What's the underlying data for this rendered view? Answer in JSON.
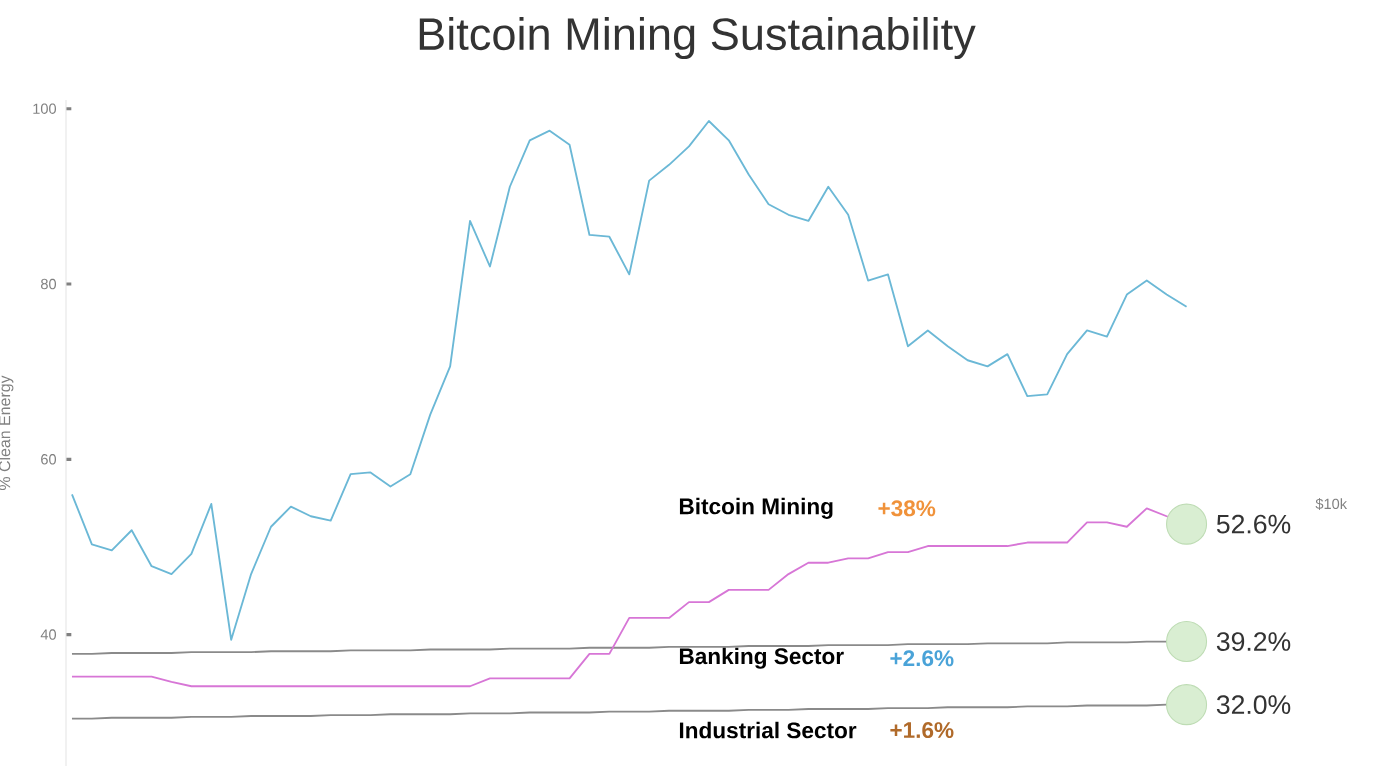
{
  "chart_data": {
    "type": "line",
    "title": "Bitcoin Mining Sustainability",
    "ylabel": "% Clean Energy",
    "categories": [
      null,
      null,
      null,
      null,
      null,
      null,
      null,
      null,
      null,
      null,
      null,
      null,
      null,
      null,
      null,
      null,
      null,
      null,
      null,
      null,
      null,
      null,
      null,
      null,
      null,
      null,
      null,
      null,
      null,
      null,
      null,
      null,
      null,
      null,
      null,
      null,
      null,
      null,
      null,
      null,
      null,
      null,
      null,
      null,
      null,
      null,
      null,
      null,
      null,
      null,
      null,
      null,
      null,
      null,
      null,
      null,
      null
    ],
    "ylim": [
      25,
      101
    ],
    "yticks": [
      40,
      60,
      80,
      100
    ],
    "annotations": [
      "+38%",
      "+2.6%",
      "+1.6%",
      "$10k"
    ],
    "series": [
      {
        "color": "#6bb8d6",
        "values": [
          56.0,
          50.3,
          49.6,
          51.9,
          47.8,
          46.9,
          49.2,
          54.9,
          39.4,
          46.9,
          52.3,
          54.6,
          53.5,
          53.0,
          58.3,
          58.5,
          56.9,
          58.3,
          65.1,
          70.6,
          87.2,
          82.0,
          91.1,
          96.4,
          97.5,
          95.9,
          85.6,
          85.4,
          81.1,
          91.8,
          93.6,
          95.7,
          98.6,
          96.4,
          92.5,
          89.1,
          87.9,
          87.2,
          91.1,
          87.9,
          80.4,
          81.1,
          72.9,
          74.7,
          72.9,
          71.3,
          70.6,
          72.0,
          67.2,
          67.4,
          72.0,
          74.7,
          74.0,
          78.8,
          80.4,
          78.8,
          77.4
        ]
      },
      {
        "name": "Bitcoin Mining",
        "color": "#d776d6",
        "values": [
          35.2,
          35.2,
          35.2,
          35.2,
          35.2,
          34.6,
          34.1,
          34.1,
          34.1,
          34.1,
          34.1,
          34.1,
          34.1,
          34.1,
          34.1,
          34.1,
          34.1,
          34.1,
          34.1,
          34.1,
          34.1,
          35.0,
          35.0,
          35.0,
          35.0,
          35.0,
          37.8,
          37.8,
          41.9,
          41.9,
          41.9,
          43.7,
          43.7,
          45.1,
          45.1,
          45.1,
          46.9,
          48.2,
          48.2,
          48.7,
          48.7,
          49.4,
          49.4,
          50.1,
          50.1,
          50.1,
          50.1,
          50.1,
          50.5,
          50.5,
          50.5,
          52.8,
          52.8,
          52.3,
          54.4,
          53.5,
          52.6
        ],
        "value_labels": [
          null,
          null,
          null,
          null,
          null,
          null,
          null,
          null,
          null,
          null,
          null,
          null,
          null,
          null,
          null,
          null,
          null,
          null,
          null,
          null,
          null,
          null,
          null,
          null,
          null,
          null,
          null,
          null,
          null,
          null,
          null,
          null,
          null,
          null,
          null,
          null,
          null,
          null,
          null,
          null,
          null,
          null,
          null,
          null,
          null,
          null,
          null,
          null,
          null,
          null,
          null,
          null,
          null,
          null,
          null,
          null,
          "52.6%"
        ]
      },
      {
        "name": "Banking Sector",
        "color": "#8a8a8a",
        "values": [
          37.8,
          37.8,
          37.9,
          37.9,
          37.9,
          37.9,
          38.0,
          38.0,
          38.0,
          38.0,
          38.1,
          38.1,
          38.1,
          38.1,
          38.2,
          38.2,
          38.2,
          38.2,
          38.3,
          38.3,
          38.3,
          38.3,
          38.4,
          38.4,
          38.4,
          38.4,
          38.5,
          38.5,
          38.5,
          38.5,
          38.6,
          38.6,
          38.6,
          38.6,
          38.7,
          38.7,
          38.7,
          38.7,
          38.8,
          38.8,
          38.8,
          38.8,
          38.9,
          38.9,
          38.9,
          38.9,
          39.0,
          39.0,
          39.0,
          39.0,
          39.1,
          39.1,
          39.1,
          39.1,
          39.2,
          39.2,
          39.2
        ],
        "value_labels": [
          null,
          null,
          null,
          null,
          null,
          null,
          null,
          null,
          null,
          null,
          null,
          null,
          null,
          null,
          null,
          null,
          null,
          null,
          null,
          null,
          null,
          null,
          null,
          null,
          null,
          null,
          null,
          null,
          null,
          null,
          null,
          null,
          null,
          null,
          null,
          null,
          null,
          null,
          null,
          null,
          null,
          null,
          null,
          null,
          null,
          null,
          null,
          null,
          null,
          null,
          null,
          null,
          null,
          null,
          null,
          null,
          "39.2%"
        ]
      },
      {
        "name": "Industrial Sector",
        "color": "#8a8a8a",
        "values": [
          30.4,
          30.4,
          30.5,
          30.5,
          30.5,
          30.5,
          30.6,
          30.6,
          30.6,
          30.7,
          30.7,
          30.7,
          30.7,
          30.8,
          30.8,
          30.8,
          30.9,
          30.9,
          30.9,
          30.9,
          31.0,
          31.0,
          31.0,
          31.1,
          31.1,
          31.1,
          31.1,
          31.2,
          31.2,
          31.2,
          31.3,
          31.3,
          31.3,
          31.3,
          31.4,
          31.4,
          31.4,
          31.5,
          31.5,
          31.5,
          31.5,
          31.6,
          31.6,
          31.6,
          31.7,
          31.7,
          31.7,
          31.7,
          31.8,
          31.8,
          31.8,
          31.9,
          31.9,
          31.9,
          31.9,
          32.0,
          32.0
        ],
        "value_labels": [
          null,
          null,
          null,
          null,
          null,
          null,
          null,
          null,
          null,
          null,
          null,
          null,
          null,
          null,
          null,
          null,
          null,
          null,
          null,
          null,
          null,
          null,
          null,
          null,
          null,
          null,
          null,
          null,
          null,
          null,
          null,
          null,
          null,
          null,
          null,
          null,
          null,
          null,
          null,
          null,
          null,
          null,
          null,
          null,
          null,
          null,
          null,
          null,
          null,
          null,
          null,
          null,
          null,
          null,
          null,
          null,
          "32.0%"
        ]
      }
    ]
  }
}
